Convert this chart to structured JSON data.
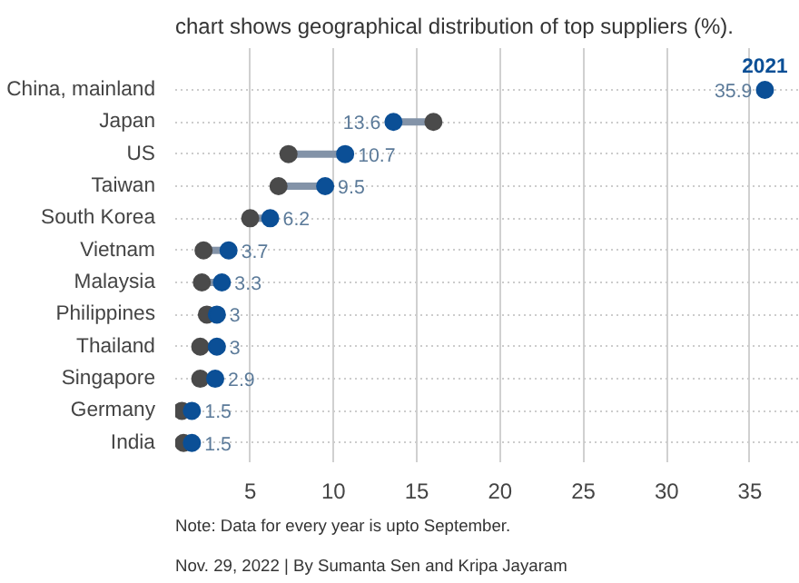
{
  "chart_data": {
    "type": "scatter",
    "orientation": "horizontal",
    "subtitle": "chart shows geographical distribution of top suppliers (%).",
    "categories": [
      "China, mainland",
      "Japan",
      "US",
      "Taiwan",
      "South Korea",
      "Vietnam",
      "Malaysia",
      "Philippines",
      "Thailand",
      "Singapore",
      "Germany",
      "India"
    ],
    "series": [
      {
        "color": "#4a4a4a",
        "values": [
          null,
          16.0,
          7.3,
          6.7,
          5.0,
          2.2,
          2.1,
          2.4,
          2.0,
          2.0,
          0.9,
          1.0
        ]
      },
      {
        "name": "2021",
        "color": "#0b4f96",
        "values": [
          35.9,
          13.6,
          10.7,
          9.5,
          6.2,
          3.7,
          3.3,
          3,
          3,
          2.9,
          1.5,
          1.5
        ],
        "value_labels": [
          "35.9",
          "13.6",
          "10.7",
          "9.5",
          "6.2",
          "3.7",
          "3.3",
          "3",
          "3",
          "2.9",
          "1.5",
          "1.5"
        ]
      }
    ],
    "xlim": [
      0.5,
      38
    ],
    "xticks": [
      5,
      10,
      15,
      20,
      25,
      30,
      35
    ],
    "grid": true,
    "marker": "circle",
    "annotations": [
      "Note: Data for every year is upto September.",
      "Nov. 29, 2022 | By Sumanta Sen and Kripa Jayaram"
    ]
  }
}
